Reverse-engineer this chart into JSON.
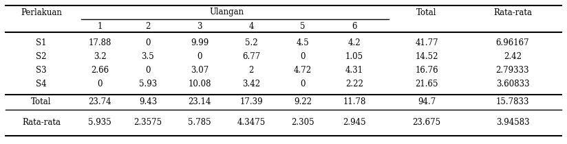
{
  "rows": [
    [
      "S1",
      "17.88",
      "0",
      "9.99",
      "5.2",
      "4.5",
      "4.2",
      "41.77",
      "6.96167"
    ],
    [
      "S2",
      "3.2",
      "3.5",
      "0",
      "6.77",
      "0",
      "1.05",
      "14.52",
      "2.42"
    ],
    [
      "S3",
      "2.66",
      "0",
      "3.07",
      "2",
      "4.72",
      "4.31",
      "16.76",
      "2.79333"
    ],
    [
      "S4",
      "0",
      "5.93",
      "10.08",
      "3.42",
      "0",
      "2.22",
      "21.65",
      "3.60833"
    ]
  ],
  "total_row": [
    "Total",
    "23.74",
    "9.43",
    "23.14",
    "17.39",
    "9.22",
    "11.78",
    "94.7",
    "15.7833"
  ],
  "rata_row": [
    "Rata-rata",
    "5.935",
    "2.3575",
    "5.785",
    "4.3475",
    "2.305",
    "2.945",
    "23.675",
    "3.94583"
  ],
  "bg_color": "#ffffff",
  "font_size": 8.5
}
